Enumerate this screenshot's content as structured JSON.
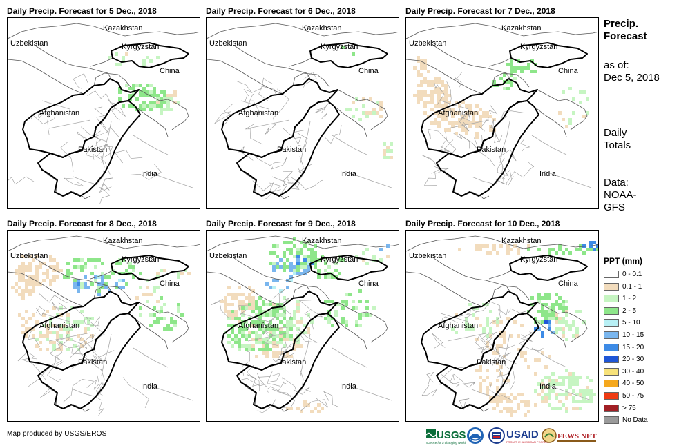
{
  "panels": [
    {
      "title": "Daily Precip. Forecast for 5 Dec., 2018",
      "coverage": "light"
    },
    {
      "title": "Daily Precip. Forecast for 6 Dec., 2018",
      "coverage": "minimal"
    },
    {
      "title": "Daily Precip. Forecast for 7 Dec., 2018",
      "coverage": "west-light"
    },
    {
      "title": "Daily Precip. Forecast for 8 Dec., 2018",
      "coverage": "moderate"
    },
    {
      "title": "Daily Precip. Forecast for 9 Dec., 2018",
      "coverage": "heavy"
    },
    {
      "title": "Daily Precip. Forecast for 10 Dec., 2018",
      "coverage": "east-moderate"
    }
  ],
  "map_labels": {
    "kazakhstan": "Kazakhstan",
    "uzbekistan": "Uzbekistan",
    "kyrgyzstan": "Kyrgyzstan",
    "china": "China",
    "afghanistan": "Afghanistan",
    "pakistan": "Pakistan",
    "india": "India"
  },
  "side": {
    "title_line1": "Precip.",
    "title_line2": "Forecast",
    "asof_line1": "as of:",
    "asof_line2": "Dec 5, 2018",
    "daily_line1": "Daily",
    "daily_line2": "Totals",
    "data_line1": "Data:",
    "data_line2": "NOAA-",
    "data_line3": "GFS"
  },
  "legend": {
    "title": "PPT (mm)",
    "items": [
      {
        "label": "0 - 0.1",
        "color": "#ffffff"
      },
      {
        "label": "0.1 - 1",
        "color": "#f2dcbd"
      },
      {
        "label": "1 - 2",
        "color": "#c6f5c2"
      },
      {
        "label": "2 - 5",
        "color": "#8ee68a"
      },
      {
        "label": "5 - 10",
        "color": "#b8f0f5"
      },
      {
        "label": "10 - 15",
        "color": "#7ab6ee"
      },
      {
        "label": "15 - 20",
        "color": "#3d8be6"
      },
      {
        "label": "20 - 30",
        "color": "#1f56d6"
      },
      {
        "label": "30 - 40",
        "color": "#f7e27a"
      },
      {
        "label": "40 - 50",
        "color": "#f5a81e"
      },
      {
        "label": "50 - 75",
        "color": "#ee3a12"
      },
      {
        "label": "> 75",
        "color": "#a11f24"
      },
      {
        "label": "No Data",
        "color": "#9a9a9a"
      }
    ]
  },
  "footer": "Map produced by USGS/EROS",
  "logos": {
    "usgs": "USGS",
    "usgs_tagline": "science for a changing world",
    "usaid": "USAID",
    "usaid_tagline": "FROM THE AMERICAN PEOPLE",
    "fewsnet": "FEWS NET"
  }
}
